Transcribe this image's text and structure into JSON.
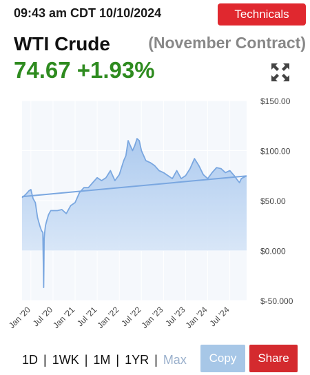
{
  "header": {
    "timestamp": "09:43 am CDT 10/10/2024",
    "technicals_label": "Technicals"
  },
  "quote": {
    "name": "WTI Crude",
    "contract": "(November Contract)",
    "price_change": "74.67 +1.93%",
    "price_color": "#2e8b1f"
  },
  "icons": {
    "expand": "expand-arrows-icon"
  },
  "ranges": {
    "d1": "1D",
    "wk1": "1WK",
    "m1": "1M",
    "yr1": "1YR",
    "max": "Max",
    "separator": "|"
  },
  "actions": {
    "copy": "Copy",
    "share": "Share"
  },
  "colors": {
    "technicals": "#e0282f",
    "share": "#d42a2e",
    "copy": "#a7c7e7",
    "line": "#7aa7e0",
    "area": "#cfe0f4"
  },
  "chart_data": {
    "type": "area",
    "title": "",
    "xlabel": "",
    "ylabel": "",
    "ylim": [
      -50,
      150
    ],
    "y_ticks": [
      "$150.00",
      "$100.00",
      "$50.00",
      "$0.000",
      "$-50.000"
    ],
    "y_tick_values": [
      150,
      100,
      50,
      0,
      -50
    ],
    "x_ticks": [
      "Jan '20",
      "Jul '20",
      "Jan '21",
      "Jul '21",
      "Jan '22",
      "Jul '22",
      "Jan '23",
      "Jul '23",
      "Jan '24",
      "Jul '24"
    ],
    "x_tick_values": [
      2020.0,
      2020.5,
      2021.0,
      2021.5,
      2022.0,
      2022.5,
      2023.0,
      2023.5,
      2024.0,
      2024.5
    ],
    "xlim": [
      2019.8,
      2024.88
    ],
    "series": [
      {
        "x": [
          2019.8,
          2019.88,
          2019.96,
          2020.0,
          2020.05,
          2020.1,
          2020.15,
          2020.2,
          2020.24,
          2020.27,
          2020.29,
          2020.3,
          2020.31,
          2020.33,
          2020.36,
          2020.4,
          2020.45,
          2020.5,
          2020.6,
          2020.7,
          2020.8,
          2020.9,
          2021.0,
          2021.1,
          2021.2,
          2021.3,
          2021.4,
          2021.5,
          2021.6,
          2021.7,
          2021.8,
          2021.9,
          2022.0,
          2022.1,
          2022.15,
          2022.2,
          2022.25,
          2022.3,
          2022.35,
          2022.4,
          2022.45,
          2022.5,
          2022.6,
          2022.7,
          2022.8,
          2022.9,
          2023.0,
          2023.1,
          2023.2,
          2023.3,
          2023.4,
          2023.5,
          2023.6,
          2023.7,
          2023.8,
          2023.9,
          2024.0,
          2024.1,
          2024.2,
          2024.3,
          2024.4,
          2024.5,
          2024.6,
          2024.68,
          2024.72,
          2024.76,
          2024.8,
          2024.88
        ],
        "y": [
          53,
          56,
          60,
          61,
          52,
          48,
          33,
          25,
          20,
          18,
          -37,
          12,
          17,
          25,
          30,
          36,
          40,
          40,
          40,
          41,
          37,
          45,
          48,
          58,
          63,
          63,
          68,
          73,
          70,
          73,
          80,
          70,
          76,
          90,
          95,
          110,
          105,
          100,
          105,
          112,
          110,
          100,
          90,
          88,
          85,
          80,
          78,
          75,
          72,
          80,
          72,
          75,
          82,
          92,
          85,
          76,
          72,
          78,
          83,
          82,
          78,
          80,
          75,
          70,
          68,
          72,
          73,
          74.67
        ]
      },
      {
        "x": [
          2019.8,
          2024.88
        ],
        "y": [
          54,
          74.67
        ]
      }
    ]
  }
}
